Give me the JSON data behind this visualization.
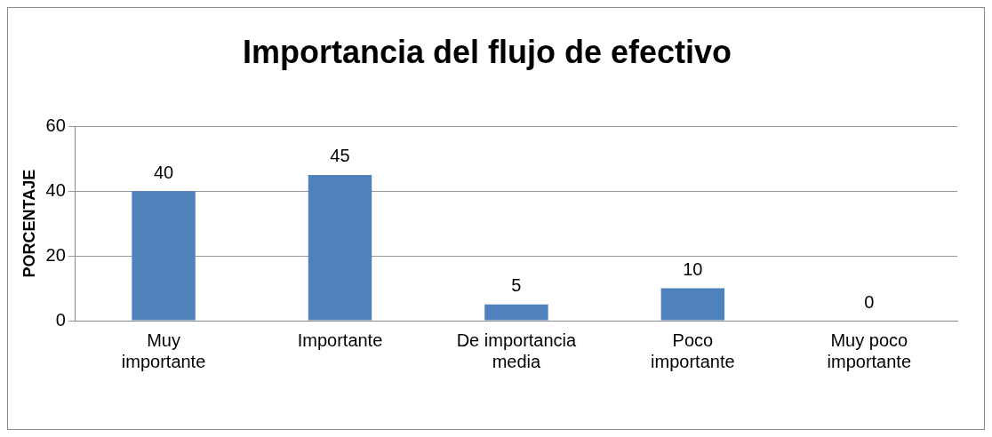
{
  "chart_data": {
    "type": "bar",
    "title": "Importancia del flujo de efectivo",
    "ylabel": "PORCENTAJE",
    "categories": [
      "Muy importante",
      "Importante",
      "De importancia media",
      "Poco importante",
      "Muy poco importante"
    ],
    "values": [
      40,
      45,
      5,
      10,
      0
    ],
    "color": "#4f81bd",
    "ylim": [
      0,
      60
    ],
    "yticks": [
      0,
      20,
      40,
      60
    ],
    "grid": "y",
    "data_labels": true,
    "legend": false
  }
}
